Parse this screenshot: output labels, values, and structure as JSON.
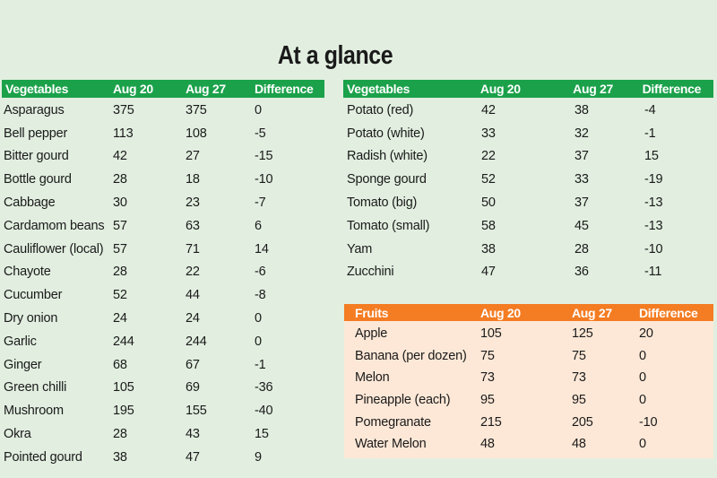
{
  "title": "At a glance",
  "headers": {
    "vegetables": "Vegetables",
    "fruits": "Fruits",
    "aug20": "Aug 20",
    "aug27": "Aug 27",
    "difference": "Difference"
  },
  "left_rows": [
    {
      "item": "Asparagus",
      "aug20": "375",
      "aug27": "375",
      "diff": "0"
    },
    {
      "item": "Bell pepper",
      "aug20": "113",
      "aug27": "108",
      "diff": "-5"
    },
    {
      "item": "Bitter gourd",
      "aug20": "42",
      "aug27": "27",
      "diff": "-15"
    },
    {
      "item": "Bottle gourd",
      "aug20": "28",
      "aug27": "18",
      "diff": "-10"
    },
    {
      "item": "Cabbage",
      "aug20": "30",
      "aug27": "23",
      "diff": "-7"
    },
    {
      "item": "Cardamom beans",
      "aug20": "57",
      "aug27": "63",
      "diff": "6"
    },
    {
      "item": "Cauliflower (local)",
      "aug20": "57",
      "aug27": "71",
      "diff": "14"
    },
    {
      "item": "Chayote",
      "aug20": "28",
      "aug27": "22",
      "diff": "-6"
    },
    {
      "item": "Cucumber",
      "aug20": "52",
      "aug27": "44",
      "diff": "-8"
    },
    {
      "item": "Dry onion",
      "aug20": "24",
      "aug27": "24",
      "diff": "0"
    },
    {
      "item": "Garlic",
      "aug20": "244",
      "aug27": "244",
      "diff": "0"
    },
    {
      "item": "Ginger",
      "aug20": "68",
      "aug27": "67",
      "diff": "-1"
    },
    {
      "item": "Green chilli",
      "aug20": "105",
      "aug27": "69",
      "diff": "-36"
    },
    {
      "item": "Mushroom",
      "aug20": "195",
      "aug27": "155",
      "diff": "-40"
    },
    {
      "item": "Okra",
      "aug20": "28",
      "aug27": "43",
      "diff": "15"
    },
    {
      "item": "Pointed gourd",
      "aug20": "38",
      "aug27": "47",
      "diff": "9"
    }
  ],
  "right_rows": [
    {
      "item": "Potato (red)",
      "aug20": "42",
      "aug27": "38",
      "diff": "-4"
    },
    {
      "item": "Potato (white)",
      "aug20": "33",
      "aug27": "32",
      "diff": "-1"
    },
    {
      "item": "Radish (white)",
      "aug20": "22",
      "aug27": "37",
      "diff": "15"
    },
    {
      "item": "Sponge gourd",
      "aug20": "52",
      "aug27": "33",
      "diff": "-19"
    },
    {
      "item": "Tomato (big)",
      "aug20": "50",
      "aug27": "37",
      "diff": "-13"
    },
    {
      "item": "Tomato (small)",
      "aug20": "58",
      "aug27": "45",
      "diff": "-13"
    },
    {
      "item": "Yam",
      "aug20": "38",
      "aug27": "28",
      "diff": "-10"
    },
    {
      "item": "Zucchini",
      "aug20": "47",
      "aug27": "36",
      "diff": "-11"
    }
  ],
  "fruit_rows": [
    {
      "item": "Apple",
      "aug20": "105",
      "aug27": "125",
      "diff": "20"
    },
    {
      "item": "Banana (per dozen)",
      "aug20": "75",
      "aug27": "75",
      "diff": "0"
    },
    {
      "item": "Melon",
      "aug20": "73",
      "aug27": "73",
      "diff": "0"
    },
    {
      "item": "Pineapple (each)",
      "aug20": "95",
      "aug27": "95",
      "diff": "0"
    },
    {
      "item": "Pomegranate",
      "aug20": "215",
      "aug27": "205",
      "diff": "-10"
    },
    {
      "item": "Water Melon",
      "aug20": "48",
      "aug27": "48",
      "diff": "0"
    }
  ],
  "colors": {
    "background": "#e2efe0",
    "vegetable_header": "#1ba14a",
    "fruit_header": "#f47c22",
    "fruit_panel": "#fde8d7"
  }
}
